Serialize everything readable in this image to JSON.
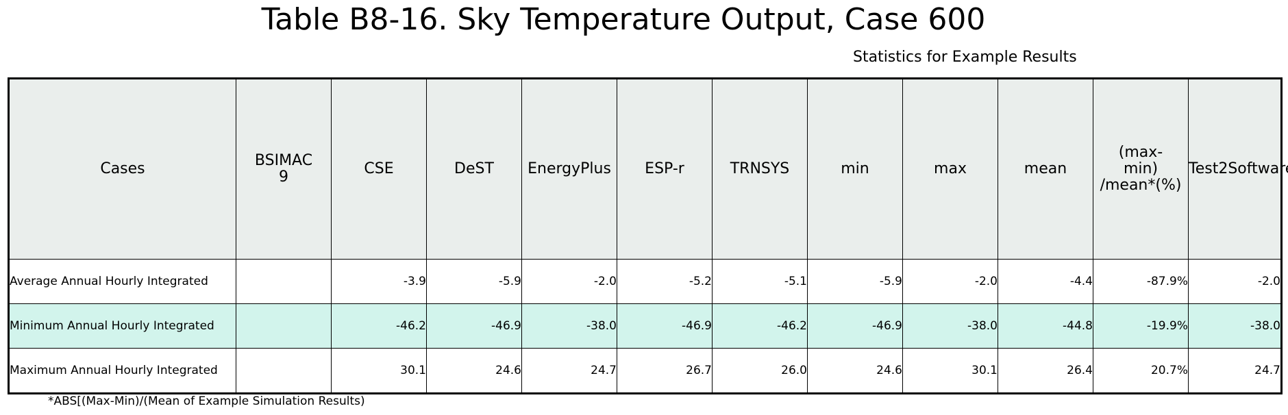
{
  "title": "Table B8-16. Sky Temperature Output, Case 600",
  "stats_label": "Statistics for Example Results",
  "table": {
    "headers": [
      "Cases",
      "BSIMAC\n9",
      "CSE",
      "DeST",
      "EnergyPlus",
      "ESP-r",
      "TRNSYS",
      "min",
      "max",
      "mean",
      "(max-\nmin)\n/mean*(%)",
      "Test2Software"
    ],
    "rows": [
      {
        "label": "Average Annual Hourly Integrated",
        "cells": [
          "",
          "-3.9",
          "-5.9",
          "-2.0",
          "-5.2",
          "-5.1",
          "-5.9",
          "-2.0",
          "-4.4",
          "-87.9%",
          "-2.0"
        ]
      },
      {
        "label": "Minimum Annual Hourly Integrated",
        "cells": [
          "",
          "-46.2",
          "-46.9",
          "-38.0",
          "-46.9",
          "-46.2",
          "-46.9",
          "-38.0",
          "-44.8",
          "-19.9%",
          "-38.0"
        ]
      },
      {
        "label": "Maximum Annual Hourly Integrated",
        "cells": [
          "",
          "30.1",
          "24.6",
          "24.7",
          "26.7",
          "26.0",
          "24.6",
          "30.1",
          "26.4",
          "20.7%",
          "24.7"
        ]
      }
    ]
  },
  "footnote": "*ABS[(Max-Min)/(Mean of Example Simulation Results)",
  "colors": {
    "header_bg": "#eaeeec",
    "alt_row_bg": "#d2f4ec"
  }
}
